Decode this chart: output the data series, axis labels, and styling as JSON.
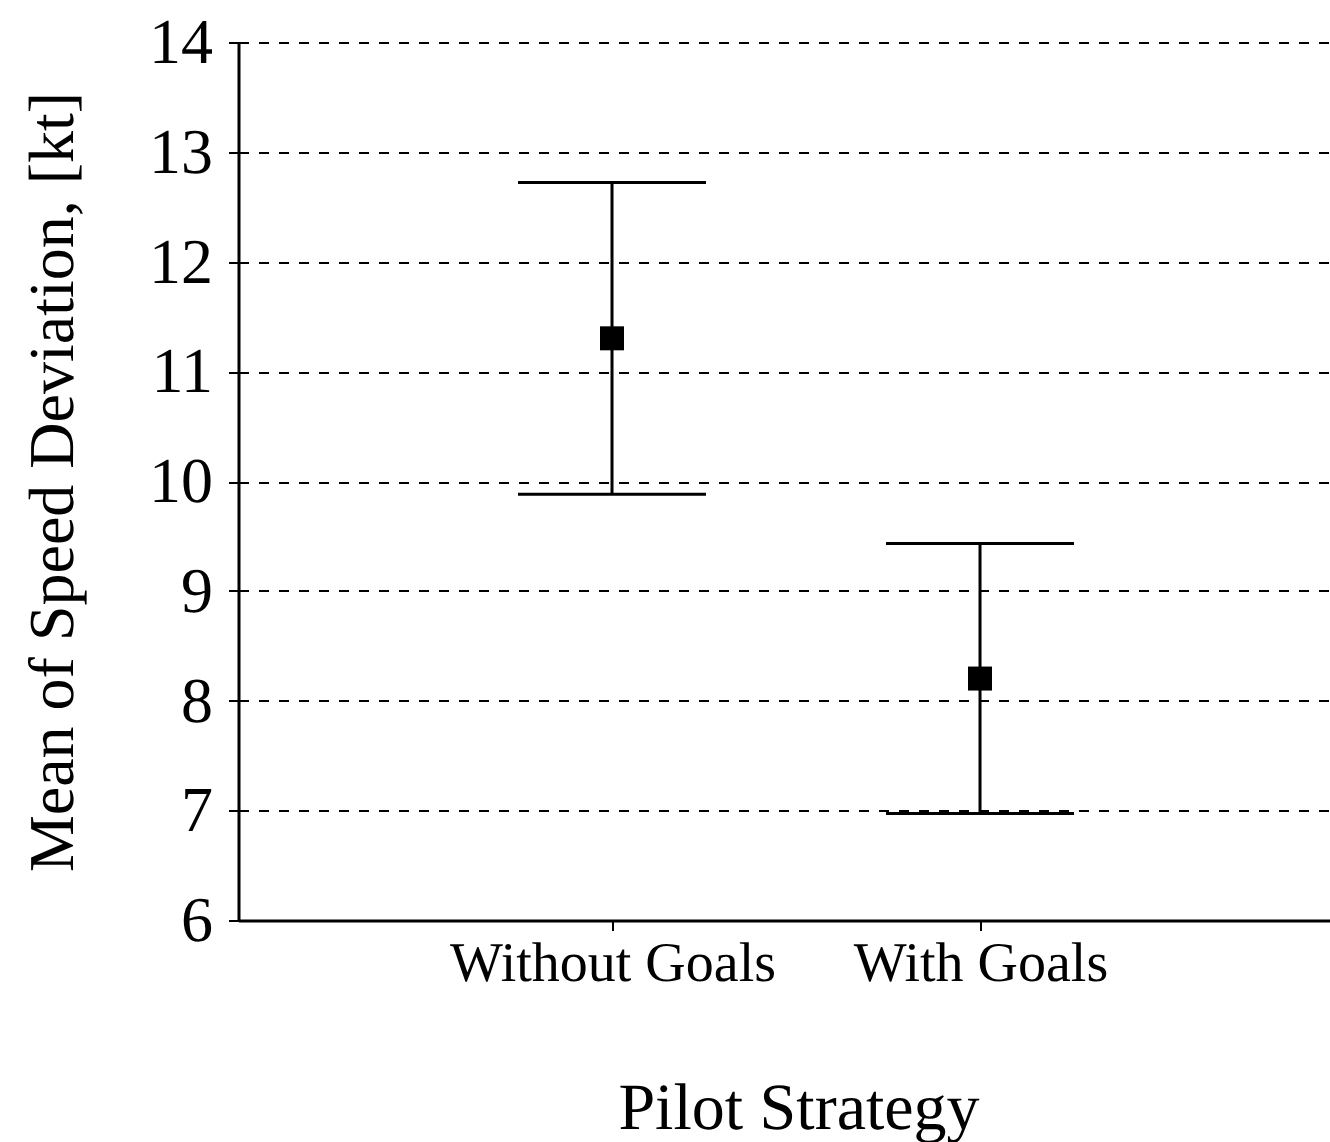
{
  "chart_data": {
    "type": "scatter",
    "xlabel": "Pilot Strategy",
    "ylabel": "Mean of Speed Deviation, [kt]",
    "categories": [
      "Without Goals",
      "With Goals"
    ],
    "values": [
      11.3,
      8.2
    ],
    "errors": [
      1.42,
      1.23
    ],
    "color": "#000000",
    "marker": "square",
    "ylim": [
      6,
      14
    ],
    "yticks": [
      6,
      7,
      8,
      9,
      10,
      11,
      12,
      13,
      14
    ],
    "grid": "y"
  }
}
